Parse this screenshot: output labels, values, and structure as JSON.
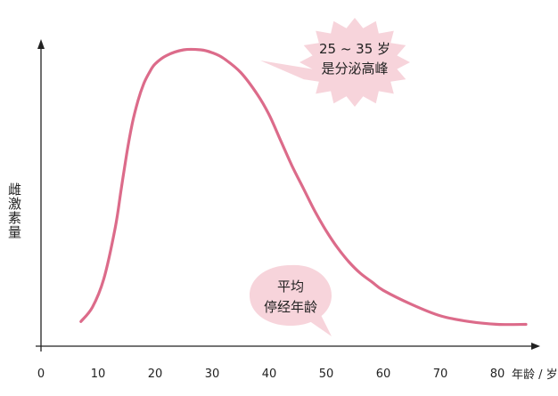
{
  "chart_data": {
    "type": "line",
    "title": "",
    "xlabel": "年龄 / 岁",
    "ylabel": "雌激素量",
    "xlim": [
      0,
      88
    ],
    "ylim": [
      0,
      100
    ],
    "xticks": [
      0,
      10,
      20,
      30,
      40,
      50,
      60,
      70,
      80
    ],
    "x": [
      7,
      9,
      11,
      13,
      14,
      15,
      16,
      17,
      18,
      19,
      20,
      22,
      25,
      28,
      30,
      32,
      35,
      38,
      40,
      42,
      44,
      46,
      48,
      50,
      52,
      54,
      56,
      58,
      60,
      65,
      70,
      75,
      80,
      85
    ],
    "series": [
      {
        "values": [
          4,
          9,
          19,
          37,
          50,
          63,
          74,
          82,
          88,
          92,
          95,
          98,
          100,
          100,
          99,
          97,
          92,
          84,
          77,
          68,
          59,
          51,
          43,
          36,
          30,
          25,
          21,
          18,
          15,
          10,
          6,
          4,
          3,
          3
        ]
      }
    ],
    "annotations": [
      {
        "line1": "25 ~ 35 岁",
        "line2": "是分泌高峰"
      },
      {
        "line1": "平均",
        "line2": "停经年龄"
      }
    ],
    "grid": false,
    "colors": {
      "curve": "#dc6b8a",
      "bubble_fill": "#f7d4db",
      "axis": "#222222"
    }
  }
}
